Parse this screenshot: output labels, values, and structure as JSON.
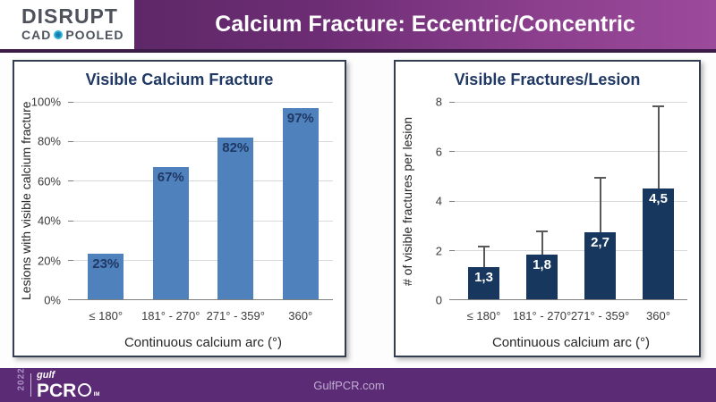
{
  "header": {
    "logo_line1": "DISRUPT",
    "logo_line2_left": "CAD",
    "logo_line2_right": "POOLED",
    "title": "Calcium Fracture: Eccentric/Concentric"
  },
  "footer": {
    "year": "2022",
    "logo_top": "gulf",
    "logo_main": "PCR",
    "logo_suffix": "IM",
    "site": "GulfPCR.com"
  },
  "colors": {
    "header_gradient_left": "#53245e",
    "header_gradient_right": "#9c4a9b",
    "header_underline": "#3c1a47",
    "footer_bg": "#5c2b76",
    "left_bar": "#4f81bd",
    "right_bar": "#17375e",
    "chart_title_text": "#1f3864",
    "panel_border": "#333f50",
    "logo_dot": "#2fb3d9",
    "footer_site_text": "#bfaed1"
  },
  "chart_data": [
    {
      "type": "bar",
      "title": "Visible Calcium Fracture",
      "categories": [
        "≤ 180°",
        "181° - 270°",
        "271° - 359°",
        "360°"
      ],
      "values": [
        23,
        67,
        82,
        97
      ],
      "value_labels": [
        "23%",
        "67%",
        "82%",
        "97%"
      ],
      "xlabel": "Continuous calcium arc (°)",
      "ylabel": "Lesions with visible calcium fracture",
      "ylim": [
        0,
        100
      ],
      "yticks": [
        0,
        20,
        40,
        60,
        80,
        100
      ],
      "ytick_labels": [
        "0%",
        "20%",
        "40%",
        "60%",
        "80%",
        "100%"
      ],
      "grid": true,
      "legend": "none",
      "bar_color": "#4f81bd",
      "label_color": "#1f3864"
    },
    {
      "type": "bar",
      "title": "Visible Fractures/Lesion",
      "categories": [
        "≤ 180°",
        "181° - 270°",
        "271° - 359°",
        "360°"
      ],
      "values": [
        1.3,
        1.8,
        2.7,
        4.5
      ],
      "value_labels": [
        "1,3",
        "1,8",
        "2,7",
        "4,5"
      ],
      "error_top": [
        2.1,
        2.7,
        4.9,
        7.8
      ],
      "xlabel": "Continuous calcium arc (°)",
      "ylabel": "# of visible fractures per lesion",
      "ylim": [
        0,
        8
      ],
      "yticks": [
        0,
        2,
        4,
        6,
        8
      ],
      "ytick_labels": [
        "0",
        "2",
        "4",
        "6",
        "8"
      ],
      "grid": true,
      "legend": "none",
      "bar_color": "#17375e",
      "label_color": "#ffffff"
    }
  ]
}
